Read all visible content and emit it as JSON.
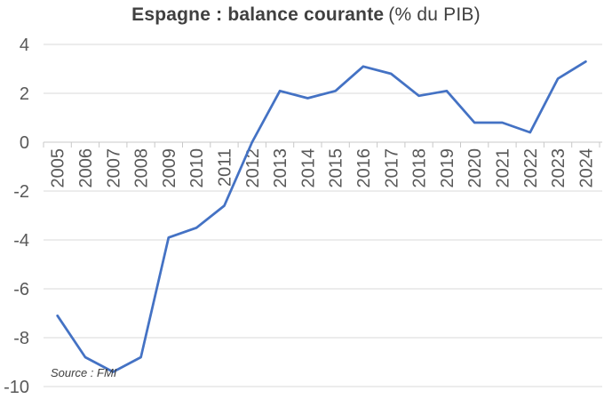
{
  "chart_data": {
    "type": "line",
    "title": "Espagne : balance courante",
    "title_suffix": "(% du PIB)",
    "source_note": "Source : FMI",
    "categories": [
      "2005",
      "2006",
      "2007",
      "2008",
      "2009",
      "2010",
      "2011",
      "2012",
      "2013",
      "2014",
      "2015",
      "2016",
      "2017",
      "2018",
      "2019",
      "2020",
      "2021",
      "2022",
      "2023",
      "2024"
    ],
    "values": [
      -7.1,
      -8.8,
      -9.4,
      -8.8,
      -3.9,
      -3.5,
      -2.6,
      0.0,
      2.1,
      1.8,
      2.1,
      3.1,
      2.8,
      1.9,
      2.1,
      0.8,
      0.8,
      0.4,
      2.6,
      3.3
    ],
    "y_ticks": [
      4,
      2,
      0,
      -2,
      -4,
      -6,
      -8,
      -10
    ],
    "ylim": [
      -10,
      4
    ],
    "xlabel": "",
    "ylabel": "",
    "grid": "horizontal",
    "legend": "none",
    "colors": {
      "line": "#4472C4",
      "gridline": "#D9D9D9",
      "axis": "#C8C8C8",
      "tick_label": "#595959",
      "title": "#404040",
      "source": "#404040",
      "background": "#FFFFFF"
    }
  }
}
